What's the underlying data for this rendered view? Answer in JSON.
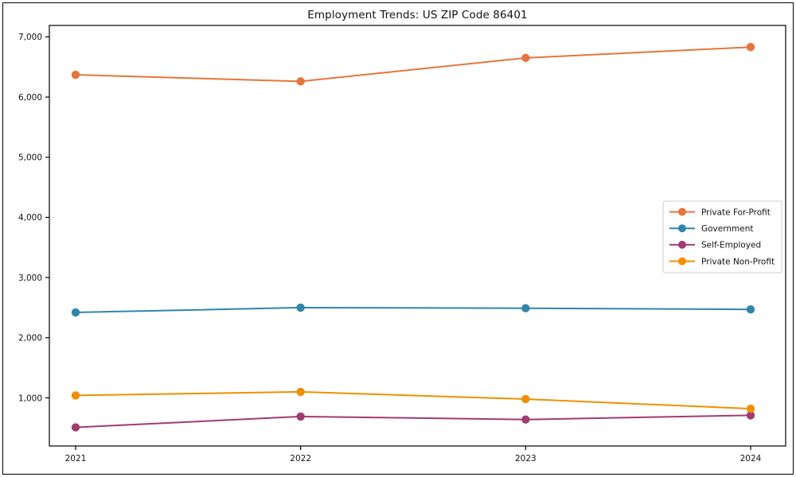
{
  "figure": {
    "background": "#ffffff",
    "border_color": "#000000"
  },
  "chart_data": {
    "type": "line",
    "title": "Employment Trends: US ZIP Code 86401",
    "xlabel": "",
    "ylabel": "",
    "categories": [
      "2021",
      "2022",
      "2023",
      "2024"
    ],
    "series": [
      {
        "name": "Private For-Profit",
        "color": "#E8743B",
        "values": [
          6370,
          6260,
          6650,
          6830
        ]
      },
      {
        "name": "Government",
        "color": "#2E86AB",
        "values": [
          2420,
          2500,
          2490,
          2470
        ]
      },
      {
        "name": "Self-Employed",
        "color": "#A23B72",
        "values": [
          510,
          690,
          640,
          710
        ]
      },
      {
        "name": "Private Non-Profit",
        "color": "#F18F01",
        "values": [
          1040,
          1100,
          980,
          820
        ]
      }
    ],
    "ylim": [
      200,
      7190
    ],
    "yticks": [
      1000,
      2000,
      3000,
      4000,
      5000,
      6000,
      7000
    ],
    "ytick_labels": [
      "1,000",
      "2,000",
      "3,000",
      "4,000",
      "5,000",
      "6,000",
      "7,000"
    ],
    "grid": false,
    "marker": "circle",
    "legend_position": "center right",
    "text_color": "#111111",
    "axis_color": "#000000",
    "legend_border_color": "#cccccc"
  }
}
